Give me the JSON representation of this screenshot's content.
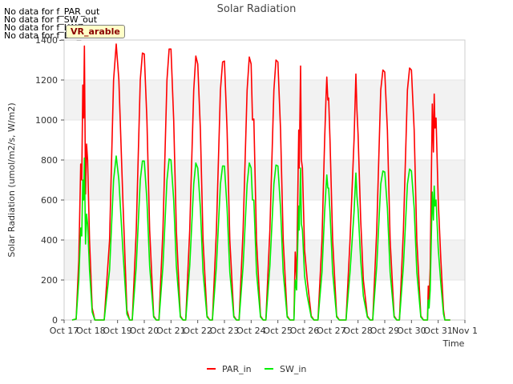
{
  "nodata_messages": [
    "No data for f_PAR_out",
    "No data for f_SW_out",
    "No data for f_LW_in",
    "No data for f_LW_out"
  ],
  "badge": "VR_arable",
  "chart_data": {
    "type": "line",
    "title": "Solar Radiation",
    "xlabel": "Time",
    "ylabel": "Solar Radiation (umol/m2/s, W/m2)",
    "x_tick_labels": [
      "Oct 17",
      "Oct 18",
      "Oct 19",
      "Oct 20",
      "Oct 21",
      "Oct 22",
      "Oct 23",
      "Oct 24",
      "Oct 25",
      "Oct 26",
      "Oct 27",
      "Oct 28",
      "Oct 29",
      "Oct 30",
      "Oct 31",
      "Nov 1"
    ],
    "xlim": [
      0,
      15
    ],
    "ylim": [
      0,
      1400
    ],
    "y_ticks": [
      0,
      200,
      400,
      600,
      800,
      1000,
      1200,
      1400
    ],
    "grid": true,
    "legend_position": "bottom-center",
    "series": [
      {
        "name": "PAR_in",
        "color": "#ff0000",
        "points": [
          [
            0.3,
            0
          ],
          [
            0.45,
            5
          ],
          [
            0.55,
            300
          ],
          [
            0.62,
            780
          ],
          [
            0.66,
            700
          ],
          [
            0.7,
            1175
          ],
          [
            0.73,
            1010
          ],
          [
            0.76,
            1370
          ],
          [
            0.8,
            630
          ],
          [
            0.84,
            880
          ],
          [
            0.88,
            800
          ],
          [
            0.95,
            400
          ],
          [
            1.05,
            60
          ],
          [
            1.15,
            0
          ],
          [
            1.5,
            0
          ],
          [
            1.7,
            400
          ],
          [
            1.85,
            1200
          ],
          [
            1.95,
            1380
          ],
          [
            2.05,
            1200
          ],
          [
            2.2,
            600
          ],
          [
            2.35,
            50
          ],
          [
            2.45,
            0
          ],
          [
            2.55,
            0
          ],
          [
            2.7,
            450
          ],
          [
            2.85,
            1200
          ],
          [
            2.93,
            1335
          ],
          [
            3.0,
            1330
          ],
          [
            3.1,
            1000
          ],
          [
            3.2,
            450
          ],
          [
            3.35,
            20
          ],
          [
            3.45,
            0
          ],
          [
            3.55,
            0
          ],
          [
            3.7,
            450
          ],
          [
            3.85,
            1200
          ],
          [
            3.93,
            1355
          ],
          [
            4.0,
            1355
          ],
          [
            4.1,
            1000
          ],
          [
            4.2,
            450
          ],
          [
            4.35,
            20
          ],
          [
            4.45,
            0
          ],
          [
            4.55,
            0
          ],
          [
            4.7,
            450
          ],
          [
            4.85,
            1150
          ],
          [
            4.93,
            1320
          ],
          [
            5.0,
            1280
          ],
          [
            5.1,
            950
          ],
          [
            5.2,
            400
          ],
          [
            5.35,
            20
          ],
          [
            5.45,
            0
          ],
          [
            5.55,
            0
          ],
          [
            5.7,
            450
          ],
          [
            5.85,
            1150
          ],
          [
            5.93,
            1290
          ],
          [
            6.0,
            1295
          ],
          [
            6.1,
            950
          ],
          [
            6.2,
            400
          ],
          [
            6.35,
            20
          ],
          [
            6.45,
            0
          ],
          [
            6.55,
            0
          ],
          [
            6.7,
            450
          ],
          [
            6.85,
            1150
          ],
          [
            6.93,
            1315
          ],
          [
            7.0,
            1280
          ],
          [
            7.05,
            1000
          ],
          [
            7.1,
            1005
          ],
          [
            7.2,
            400
          ],
          [
            7.35,
            20
          ],
          [
            7.45,
            0
          ],
          [
            7.55,
            0
          ],
          [
            7.7,
            450
          ],
          [
            7.85,
            1150
          ],
          [
            7.93,
            1300
          ],
          [
            8.0,
            1290
          ],
          [
            8.1,
            950
          ],
          [
            8.2,
            400
          ],
          [
            8.35,
            20
          ],
          [
            8.45,
            0
          ],
          [
            8.6,
            0
          ],
          [
            8.65,
            340
          ],
          [
            8.7,
            200
          ],
          [
            8.78,
            950
          ],
          [
            8.8,
            760
          ],
          [
            8.85,
            1270
          ],
          [
            8.88,
            800
          ],
          [
            8.92,
            760
          ],
          [
            9.0,
            350
          ],
          [
            9.1,
            200
          ],
          [
            9.25,
            20
          ],
          [
            9.35,
            0
          ],
          [
            9.5,
            0
          ],
          [
            9.65,
            400
          ],
          [
            9.75,
            900
          ],
          [
            9.8,
            1110
          ],
          [
            9.83,
            1215
          ],
          [
            9.87,
            1100
          ],
          [
            9.9,
            1110
          ],
          [
            9.95,
            900
          ],
          [
            10.05,
            400
          ],
          [
            10.2,
            20
          ],
          [
            10.3,
            0
          ],
          [
            10.55,
            0
          ],
          [
            10.7,
            400
          ],
          [
            10.85,
            900
          ],
          [
            10.92,
            1230
          ],
          [
            10.96,
            1050
          ],
          [
            11.0,
            930
          ],
          [
            11.1,
            500
          ],
          [
            11.2,
            200
          ],
          [
            11.35,
            20
          ],
          [
            11.45,
            0
          ],
          [
            11.55,
            0
          ],
          [
            11.7,
            450
          ],
          [
            11.85,
            1150
          ],
          [
            11.93,
            1250
          ],
          [
            12.0,
            1240
          ],
          [
            12.1,
            950
          ],
          [
            12.2,
            400
          ],
          [
            12.35,
            20
          ],
          [
            12.45,
            0
          ],
          [
            12.55,
            0
          ],
          [
            12.7,
            450
          ],
          [
            12.85,
            1150
          ],
          [
            12.93,
            1260
          ],
          [
            13.0,
            1250
          ],
          [
            13.1,
            950
          ],
          [
            13.2,
            400
          ],
          [
            13.35,
            20
          ],
          [
            13.45,
            0
          ],
          [
            13.6,
            0
          ],
          [
            13.63,
            170
          ],
          [
            13.66,
            100
          ],
          [
            13.7,
            260
          ],
          [
            13.78,
            1080
          ],
          [
            13.82,
            840
          ],
          [
            13.85,
            1130
          ],
          [
            13.88,
            960
          ],
          [
            13.92,
            1010
          ],
          [
            14.0,
            600
          ],
          [
            14.1,
            300
          ],
          [
            14.2,
            50
          ],
          [
            14.25,
            0
          ],
          [
            14.45,
            0
          ]
        ]
      },
      {
        "name": "SW_in",
        "color": "#00ee00",
        "points": [
          [
            0.3,
            0
          ],
          [
            0.45,
            5
          ],
          [
            0.55,
            200
          ],
          [
            0.62,
            460
          ],
          [
            0.66,
            420
          ],
          [
            0.7,
            700
          ],
          [
            0.73,
            600
          ],
          [
            0.76,
            810
          ],
          [
            0.8,
            380
          ],
          [
            0.84,
            530
          ],
          [
            0.88,
            480
          ],
          [
            0.95,
            250
          ],
          [
            1.05,
            40
          ],
          [
            1.15,
            0
          ],
          [
            1.5,
            0
          ],
          [
            1.7,
            250
          ],
          [
            1.85,
            700
          ],
          [
            1.95,
            820
          ],
          [
            2.05,
            700
          ],
          [
            2.2,
            350
          ],
          [
            2.35,
            30
          ],
          [
            2.45,
            0
          ],
          [
            2.55,
            0
          ],
          [
            2.7,
            270
          ],
          [
            2.85,
            700
          ],
          [
            2.93,
            795
          ],
          [
            3.0,
            795
          ],
          [
            3.1,
            600
          ],
          [
            3.2,
            270
          ],
          [
            3.35,
            15
          ],
          [
            3.45,
            0
          ],
          [
            3.55,
            0
          ],
          [
            3.7,
            270
          ],
          [
            3.85,
            700
          ],
          [
            3.93,
            805
          ],
          [
            4.0,
            800
          ],
          [
            4.1,
            600
          ],
          [
            4.2,
            270
          ],
          [
            4.35,
            15
          ],
          [
            4.45,
            0
          ],
          [
            4.55,
            0
          ],
          [
            4.7,
            270
          ],
          [
            4.85,
            680
          ],
          [
            4.93,
            785
          ],
          [
            5.0,
            760
          ],
          [
            5.1,
            560
          ],
          [
            5.2,
            240
          ],
          [
            5.35,
            15
          ],
          [
            5.45,
            0
          ],
          [
            5.55,
            0
          ],
          [
            5.7,
            270
          ],
          [
            5.85,
            680
          ],
          [
            5.93,
            770
          ],
          [
            6.0,
            770
          ],
          [
            6.1,
            560
          ],
          [
            6.2,
            240
          ],
          [
            6.35,
            15
          ],
          [
            6.45,
            0
          ],
          [
            6.55,
            0
          ],
          [
            6.7,
            270
          ],
          [
            6.85,
            680
          ],
          [
            6.93,
            785
          ],
          [
            7.0,
            760
          ],
          [
            7.05,
            600
          ],
          [
            7.1,
            600
          ],
          [
            7.2,
            240
          ],
          [
            7.35,
            15
          ],
          [
            7.45,
            0
          ],
          [
            7.55,
            0
          ],
          [
            7.7,
            270
          ],
          [
            7.85,
            680
          ],
          [
            7.93,
            775
          ],
          [
            8.0,
            770
          ],
          [
            8.1,
            560
          ],
          [
            8.2,
            240
          ],
          [
            8.35,
            15
          ],
          [
            8.45,
            0
          ],
          [
            8.6,
            0
          ],
          [
            8.65,
            200
          ],
          [
            8.7,
            150
          ],
          [
            8.78,
            570
          ],
          [
            8.8,
            450
          ],
          [
            8.85,
            760
          ],
          [
            8.88,
            480
          ],
          [
            8.92,
            450
          ],
          [
            9.0,
            220
          ],
          [
            9.1,
            120
          ],
          [
            9.25,
            15
          ],
          [
            9.35,
            0
          ],
          [
            9.5,
            0
          ],
          [
            9.65,
            240
          ],
          [
            9.75,
            540
          ],
          [
            9.8,
            660
          ],
          [
            9.83,
            725
          ],
          [
            9.87,
            660
          ],
          [
            9.9,
            660
          ],
          [
            9.95,
            540
          ],
          [
            10.05,
            240
          ],
          [
            10.2,
            15
          ],
          [
            10.3,
            0
          ],
          [
            10.55,
            0
          ],
          [
            10.7,
            240
          ],
          [
            10.85,
            540
          ],
          [
            10.92,
            735
          ],
          [
            10.96,
            620
          ],
          [
            11.0,
            555
          ],
          [
            11.1,
            300
          ],
          [
            11.2,
            120
          ],
          [
            11.35,
            15
          ],
          [
            11.45,
            0
          ],
          [
            11.55,
            0
          ],
          [
            11.7,
            270
          ],
          [
            11.85,
            680
          ],
          [
            11.93,
            745
          ],
          [
            12.0,
            740
          ],
          [
            12.1,
            560
          ],
          [
            12.2,
            240
          ],
          [
            12.35,
            15
          ],
          [
            12.45,
            0
          ],
          [
            12.55,
            0
          ],
          [
            12.7,
            270
          ],
          [
            12.85,
            680
          ],
          [
            12.93,
            755
          ],
          [
            13.0,
            745
          ],
          [
            13.1,
            560
          ],
          [
            13.2,
            240
          ],
          [
            13.35,
            15
          ],
          [
            13.45,
            0
          ],
          [
            13.6,
            0
          ],
          [
            13.63,
            100
          ],
          [
            13.66,
            60
          ],
          [
            13.7,
            150
          ],
          [
            13.78,
            640
          ],
          [
            13.82,
            500
          ],
          [
            13.85,
            670
          ],
          [
            13.88,
            570
          ],
          [
            13.92,
            600
          ],
          [
            14.0,
            360
          ],
          [
            14.1,
            180
          ],
          [
            14.2,
            30
          ],
          [
            14.25,
            0
          ],
          [
            14.45,
            0
          ]
        ]
      }
    ]
  }
}
